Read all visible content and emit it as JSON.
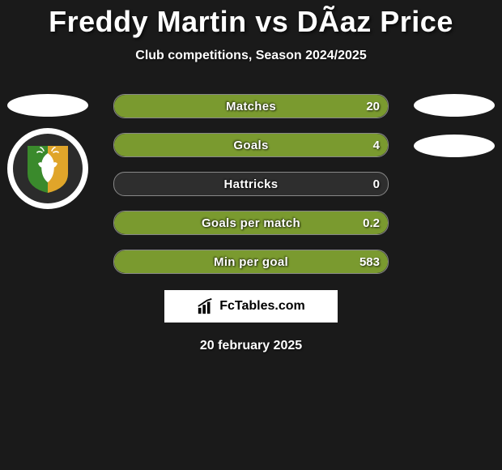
{
  "header": {
    "player1": "Freddy Martin",
    "vs": "vs",
    "player2": "DÃ­az Price",
    "subtitle": "Club competitions, Season 2024/2025"
  },
  "badge_left": {
    "ring_color": "#ffffff",
    "inner_color": "#2b2b2b",
    "shield_left_color": "#3a8a2c",
    "shield_right_color": "#e0a52a",
    "deer_color": "#ffffff"
  },
  "bars": {
    "track_bg": "#2e2e2e",
    "track_border": "#888888",
    "fill_color": "#7a9a2f",
    "text_color": "#ffffff",
    "items": [
      {
        "label": "Matches",
        "left": "",
        "right": "20",
        "fill_pct": 100
      },
      {
        "label": "Goals",
        "left": "",
        "right": "4",
        "fill_pct": 100
      },
      {
        "label": "Hattricks",
        "left": "",
        "right": "0",
        "fill_pct": 0
      },
      {
        "label": "Goals per match",
        "left": "",
        "right": "0.2",
        "fill_pct": 100
      },
      {
        "label": "Min per goal",
        "left": "",
        "right": "583",
        "fill_pct": 100
      }
    ]
  },
  "attribution": {
    "text": "FcTables.com",
    "bg": "#ffffff",
    "text_color": "#000000"
  },
  "date": "20 february 2025",
  "colors": {
    "page_bg": "#1a1a1a",
    "silhouette": "#ffffff"
  }
}
